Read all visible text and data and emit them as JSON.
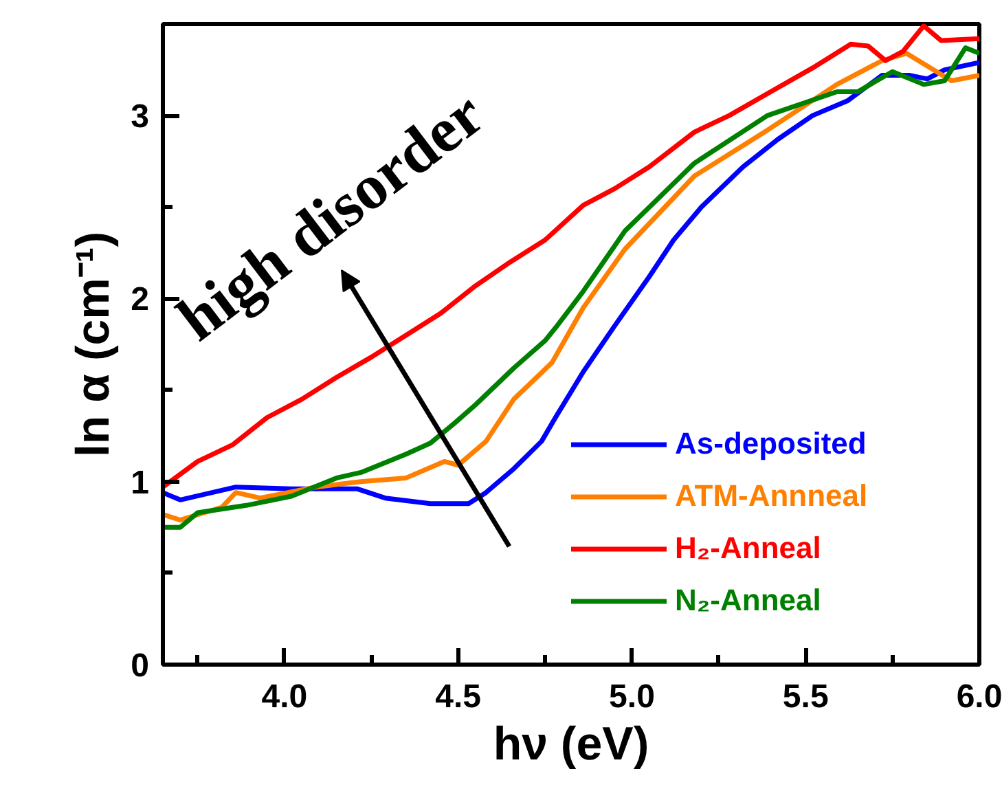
{
  "chart_data": {
    "type": "line",
    "xlabel": "hν (eV)",
    "ylabel": "ln α (cm⁻¹)",
    "xlim": [
      3.65,
      6.0
    ],
    "ylim": [
      0,
      3.5
    ],
    "xticks": [
      {
        "value": 3.75,
        "label": null
      },
      {
        "value": 4.0,
        "label": "4.0"
      },
      {
        "value": 4.25,
        "label": null
      },
      {
        "value": 4.5,
        "label": "4.5"
      },
      {
        "value": 4.75,
        "label": null
      },
      {
        "value": 5.0,
        "label": "5.0"
      },
      {
        "value": 5.25,
        "label": null
      },
      {
        "value": 5.5,
        "label": "5.5"
      },
      {
        "value": 5.75,
        "label": null
      },
      {
        "value": 6.0,
        "label": "6.0"
      }
    ],
    "yticks": [
      0,
      {
        "value": 0.5,
        "label": null
      },
      1,
      {
        "value": 1.5,
        "label": null
      },
      2,
      {
        "value": 2.5,
        "label": null
      },
      3
    ],
    "grid": false,
    "legend": "bottom right",
    "marker": "none",
    "line_style": "solid",
    "annotations": [
      "high disorder"
    ],
    "series": [
      {
        "name": "As-deposited",
        "color": "#0000ff",
        "x": [
          3.65,
          3.7,
          3.86,
          4.02,
          4.21,
          4.29,
          4.42,
          4.53,
          4.58,
          4.66,
          4.74,
          4.78,
          4.86,
          4.95,
          5.05,
          5.12,
          5.2,
          5.32,
          5.42,
          5.52,
          5.62,
          5.72,
          5.8,
          5.85,
          5.9,
          6.0
        ],
        "values": [
          0.94,
          0.9,
          0.97,
          0.96,
          0.96,
          0.91,
          0.88,
          0.88,
          0.94,
          1.07,
          1.22,
          1.35,
          1.6,
          1.85,
          2.12,
          2.32,
          2.5,
          2.72,
          2.87,
          3.0,
          3.08,
          3.22,
          3.22,
          3.2,
          3.25,
          3.29
        ]
      },
      {
        "name": "ATM-Annneal",
        "color": "#ff8000",
        "x": [
          3.65,
          3.7,
          3.82,
          3.86,
          3.93,
          4.09,
          4.22,
          4.35,
          4.46,
          4.5,
          4.58,
          4.66,
          4.77,
          4.86,
          4.98,
          5.18,
          5.39,
          5.59,
          5.72,
          5.79,
          5.92,
          6.0
        ],
        "values": [
          0.82,
          0.79,
          0.86,
          0.94,
          0.91,
          0.97,
          1.0,
          1.02,
          1.11,
          1.09,
          1.22,
          1.45,
          1.65,
          1.95,
          2.27,
          2.67,
          2.92,
          3.17,
          3.3,
          3.34,
          3.19,
          3.22
        ]
      },
      {
        "name": "H₂-Anneal",
        "color": "#ff0000",
        "x": [
          3.65,
          3.75,
          3.85,
          3.95,
          4.05,
          4.15,
          4.25,
          4.35,
          4.45,
          4.55,
          4.65,
          4.75,
          4.86,
          4.95,
          5.05,
          5.18,
          5.28,
          5.39,
          5.52,
          5.63,
          5.68,
          5.73,
          5.78,
          5.84,
          5.89,
          6.0
        ],
        "values": [
          0.97,
          1.11,
          1.2,
          1.35,
          1.45,
          1.57,
          1.68,
          1.8,
          1.92,
          2.07,
          2.2,
          2.32,
          2.51,
          2.6,
          2.72,
          2.91,
          3.0,
          3.12,
          3.26,
          3.39,
          3.38,
          3.3,
          3.35,
          3.49,
          3.41,
          3.42
        ]
      },
      {
        "name": "N₂-Anneal",
        "color": "#008000",
        "x": [
          3.65,
          3.7,
          3.75,
          3.89,
          4.02,
          4.15,
          4.22,
          4.35,
          4.42,
          4.49,
          4.55,
          4.66,
          4.75,
          4.78,
          4.86,
          4.98,
          5.18,
          5.39,
          5.59,
          5.65,
          5.75,
          5.84,
          5.9,
          5.96,
          6.0
        ],
        "values": [
          0.75,
          0.75,
          0.83,
          0.87,
          0.92,
          1.02,
          1.05,
          1.15,
          1.21,
          1.32,
          1.42,
          1.62,
          1.77,
          1.84,
          2.04,
          2.37,
          2.74,
          3.0,
          3.13,
          3.13,
          3.24,
          3.17,
          3.19,
          3.37,
          3.34
        ]
      }
    ]
  }
}
